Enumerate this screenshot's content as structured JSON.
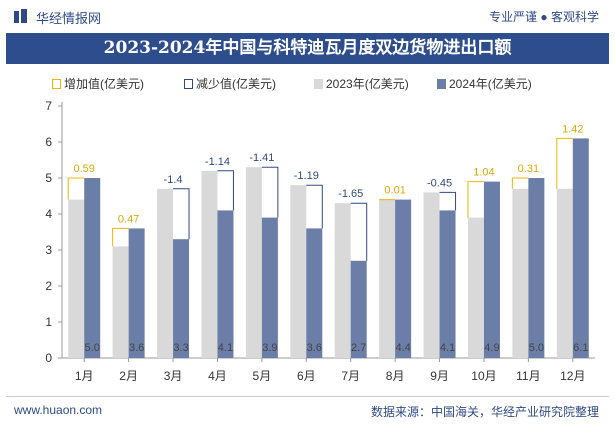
{
  "header": {
    "brand": "华经情报网",
    "slogan": "专业严谨 ● 客观科学"
  },
  "title": "2023-2024年中国与科特迪瓦月度双边货物进出口额",
  "legend": {
    "increase": "增加值(亿美元)",
    "decrease": "减少值(亿美元)",
    "y2023": "2023年(亿美元)",
    "y2024": "2024年(亿美元)"
  },
  "colors": {
    "y2023": "#d9d9d9",
    "y2024": "#6b7ea8",
    "increase": "#f0b400",
    "decrease": "#2e4a86",
    "increase_label": "#e0a800",
    "decrease_label": "#2e4a86"
  },
  "chart_data": {
    "type": "bar",
    "categories": [
      "1月",
      "2月",
      "3月",
      "4月",
      "5月",
      "6月",
      "7月",
      "8月",
      "9月",
      "10月",
      "11月",
      "12月"
    ],
    "series": [
      {
        "name": "2023年(亿美元)",
        "values": [
          4.4,
          3.1,
          4.7,
          5.2,
          5.3,
          4.8,
          4.3,
          4.4,
          4.6,
          3.9,
          4.7,
          4.7
        ]
      },
      {
        "name": "2024年(亿美元)",
        "values": [
          5.0,
          3.6,
          3.3,
          4.1,
          3.9,
          3.6,
          2.7,
          4.4,
          4.1,
          4.9,
          5.0,
          6.1
        ]
      }
    ],
    "bar_labels_2024": [
      "5.0",
      "3.6",
      "3.3",
      "4.1",
      "3.9",
      "3.6",
      "2.7",
      "4.4",
      "4.1",
      "4.9",
      "5.0",
      "6.1"
    ],
    "change_labels": [
      "0.59",
      "0.47",
      "-1.4",
      "-1.14",
      "-1.41",
      "-1.19",
      "-1.65",
      "0.01",
      "-0.45",
      "1.04",
      "0.31",
      "1.42"
    ],
    "ylim": [
      0,
      7
    ],
    "yticks": [
      "0",
      "1",
      "2",
      "3",
      "4",
      "5",
      "6",
      "7"
    ],
    "grid": false
  },
  "footer": {
    "website": "www.huaon.com",
    "source": "数据来源：中国海关，华经产业研究院整理"
  }
}
